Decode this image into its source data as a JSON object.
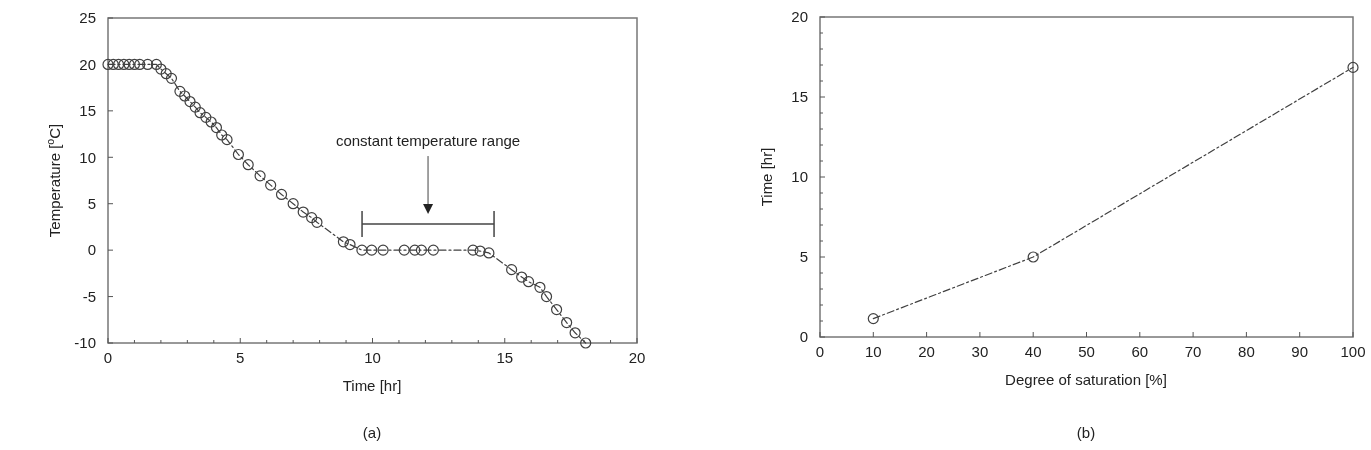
{
  "chart_data": [
    {
      "type": "line",
      "xlabel": "Time [hr]",
      "ylabel": "Temperature [$^{o}$C]",
      "x": [
        0,
        0.2,
        0.4,
        0.6,
        0.8,
        1.0,
        1.2,
        1.5,
        1.83,
        2.0,
        2.2,
        2.4,
        2.72,
        2.9,
        3.1,
        3.3,
        3.48,
        3.7,
        3.9,
        4.1,
        4.3,
        4.5,
        4.93,
        5.3,
        5.75,
        6.15,
        6.56,
        7.0,
        7.38,
        7.7,
        7.9,
        8.9,
        9.15,
        9.6,
        9.97,
        10.4,
        11.2,
        11.6,
        11.85,
        12.3,
        13.8,
        14.07,
        14.4,
        15.26,
        15.64,
        15.9,
        16.33,
        16.58,
        16.96,
        17.34,
        17.66,
        18.06
      ],
      "series": [
        {
          "color": "#404040",
          "values": [
            20,
            20,
            20,
            20,
            20,
            20,
            20,
            20,
            20,
            19.5,
            19,
            18.5,
            17.1,
            16.6,
            16,
            15.4,
            14.8,
            14.3,
            13.8,
            13.2,
            12.4,
            11.9,
            10.3,
            9.2,
            8.0,
            7.0,
            6.0,
            5.0,
            4.1,
            3.5,
            3.0,
            0.9,
            0.6,
            0,
            0,
            0,
            0,
            0,
            0,
            0,
            0,
            -0.1,
            -0.3,
            -2.1,
            -2.9,
            -3.4,
            -4.0,
            -5.0,
            -6.4,
            -7.8,
            -8.9,
            -10
          ]
        }
      ],
      "xlim": [
        0,
        20
      ],
      "ylim": [
        -10,
        25
      ],
      "xticks": [
        0,
        {
          "value": 1,
          "label": null
        },
        {
          "value": 2,
          "label": null
        },
        {
          "value": 3,
          "label": null
        },
        {
          "value": 4,
          "label": null
        },
        5,
        {
          "value": 6,
          "label": null
        },
        {
          "value": 7,
          "label": null
        },
        {
          "value": 8,
          "label": null
        },
        {
          "value": 9,
          "label": null
        },
        10,
        {
          "value": 11,
          "label": null
        },
        {
          "value": 12,
          "label": null
        },
        {
          "value": 13,
          "label": null
        },
        {
          "value": 14,
          "label": null
        },
        15,
        {
          "value": 16,
          "label": null
        },
        {
          "value": 17,
          "label": null
        },
        {
          "value": 18,
          "label": null
        },
        {
          "value": 19,
          "label": null
        },
        20
      ],
      "yticks": [
        -10,
        -5,
        0,
        5,
        10,
        15,
        20,
        25
      ],
      "annotations": [
        "(a)",
        "constant temperature range"
      ],
      "marker": "circle",
      "line_style": "dashed"
    },
    {
      "type": "line",
      "xlabel": "Degree of saturation [%]",
      "ylabel": "Time [hr]",
      "annotations": [
        "(b)"
      ],
      "x": [
        10,
        40,
        100
      ],
      "series": [
        {
          "color": "#404040",
          "values": [
            1.15,
            5.0,
            16.85
          ]
        }
      ],
      "xlim": [
        0,
        100
      ],
      "ylim": [
        0,
        20
      ],
      "xticks": [
        0,
        10,
        20,
        30,
        40,
        50,
        60,
        70,
        80,
        90,
        100
      ],
      "yticks": [
        0,
        {
          "value": 1,
          "label": null
        },
        {
          "value": 2,
          "label": null
        },
        {
          "value": 3,
          "label": null
        },
        {
          "value": 4,
          "label": null
        },
        5,
        {
          "value": 6,
          "label": null
        },
        {
          "value": 7,
          "label": null
        },
        {
          "value": 8,
          "label": null
        },
        {
          "value": 9,
          "label": null
        },
        10,
        {
          "value": 11,
          "label": null
        },
        {
          "value": 12,
          "label": null
        },
        {
          "value": 13,
          "label": null
        },
        {
          "value": 14,
          "label": null
        },
        15,
        {
          "value": 16,
          "label": null
        },
        {
          "value": 17,
          "label": null
        },
        {
          "value": 18,
          "label": null
        },
        {
          "value": 19,
          "label": null
        },
        20
      ],
      "marker": "circle",
      "line_style": "dashed"
    }
  ]
}
